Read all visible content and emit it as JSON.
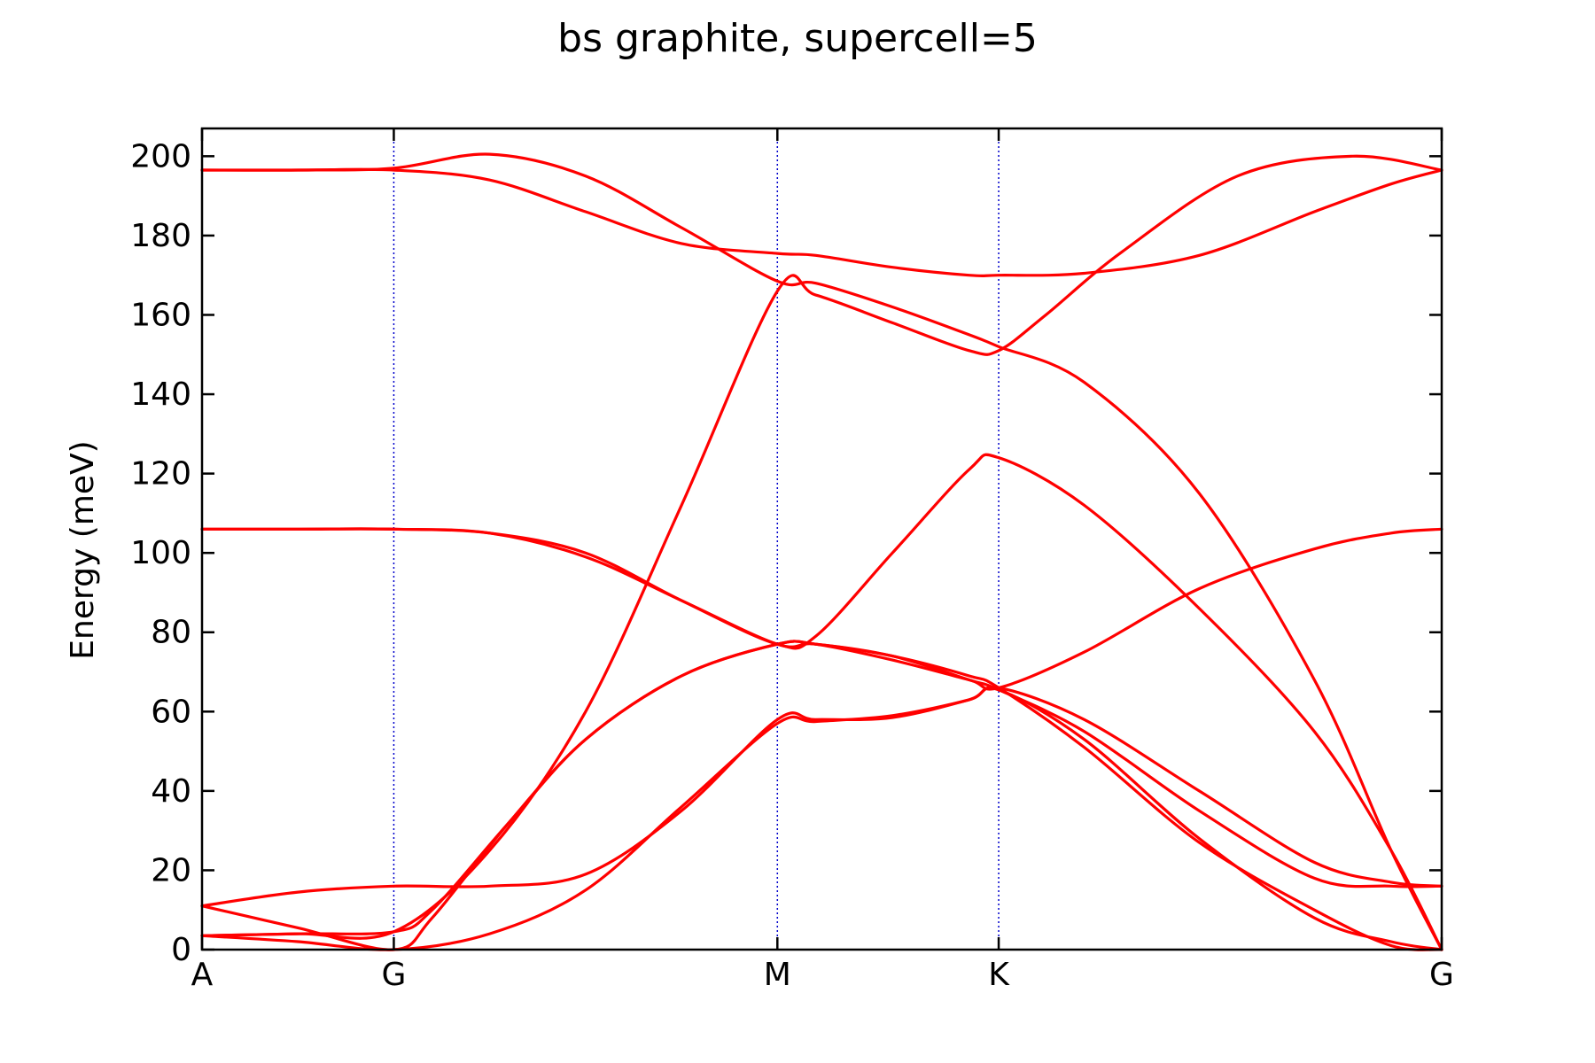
{
  "chart_data": {
    "type": "line",
    "title": "bs graphite, supercell=5",
    "ylabel": "Energy (meV)",
    "xlabel": "",
    "ylim": [
      0,
      207
    ],
    "yticks": [
      0,
      20,
      40,
      60,
      80,
      100,
      120,
      140,
      160,
      180,
      200
    ],
    "high_symmetry_points": [
      {
        "label": "A",
        "x": 0.0
      },
      {
        "label": "G",
        "x": 0.5
      },
      {
        "label": "M",
        "x": 1.5
      },
      {
        "label": "K",
        "x": 2.077
      },
      {
        "label": "G",
        "x": 3.232
      }
    ],
    "xlim": [
      0.0,
      3.232
    ],
    "line_color": "#ff0000",
    "vline_color": "#0000cc",
    "grid": false,
    "series": [
      {
        "x": [
          0.0,
          0.25,
          0.5,
          0.75,
          1.0,
          1.25,
          1.5,
          1.6,
          1.8,
          2.0,
          2.077,
          2.2,
          2.4,
          2.7,
          3.0,
          3.232
        ],
        "values": [
          3.5,
          4.0,
          4.5,
          25,
          60,
          112,
          166,
          165,
          158,
          151,
          151,
          160,
          176,
          195,
          200,
          196.5
        ]
      },
      {
        "x": [
          0.0,
          0.25,
          0.5,
          0.75,
          1.0,
          1.25,
          1.5,
          1.6,
          1.8,
          2.0,
          2.077,
          2.3,
          2.6,
          2.9,
          3.1,
          3.232
        ],
        "values": [
          196.5,
          196.5,
          196.5,
          194,
          186,
          178,
          175.5,
          175,
          172,
          170,
          170,
          170.5,
          175,
          186,
          193,
          196.5
        ]
      },
      {
        "x": [
          0.0,
          0.25,
          0.5,
          0.75,
          1.0,
          1.25,
          1.5,
          1.6,
          1.8,
          2.0,
          2.077,
          2.3,
          2.6,
          2.9,
          3.1,
          3.232
        ],
        "values": [
          196.5,
          196.5,
          197,
          200.5,
          195,
          182,
          168.5,
          168,
          162,
          155,
          152,
          143,
          115,
          68,
          25,
          0
        ]
      },
      {
        "x": [
          0.0,
          0.25,
          0.5,
          0.75,
          1.0,
          1.25,
          1.5,
          1.6,
          1.8,
          2.0,
          2.077,
          2.3,
          2.6,
          2.9,
          3.1,
          3.232
        ],
        "values": [
          106,
          106,
          106,
          105,
          100,
          88,
          77,
          79,
          100,
          121,
          124,
          112,
          86,
          55,
          25,
          0
        ]
      },
      {
        "x": [
          0.0,
          0.25,
          0.5,
          0.75,
          1.0,
          1.25,
          1.5,
          1.6,
          1.8,
          2.0,
          2.077,
          2.3,
          2.6,
          2.9,
          3.1,
          3.232
        ],
        "values": [
          106,
          106,
          106,
          105,
          99,
          88,
          77,
          77,
          73,
          68,
          66,
          75,
          91,
          101,
          105,
          106
        ]
      },
      {
        "x": [
          0.0,
          0.25,
          0.5,
          0.6,
          0.8,
          1.0,
          1.25,
          1.5,
          1.6,
          1.8,
          2.0,
          2.077,
          2.3,
          2.6,
          2.9,
          3.1,
          3.232
        ],
        "values": [
          11,
          5.5,
          0,
          8,
          32,
          53,
          69,
          77,
          77,
          74,
          69,
          66,
          51,
          27,
          10,
          1,
          0
        ]
      },
      {
        "x": [
          0.0,
          0.25,
          0.5,
          0.6,
          0.8,
          1.0,
          1.25,
          1.5,
          1.6,
          1.8,
          2.0,
          2.077,
          2.3,
          2.6,
          2.9,
          3.1,
          3.232
        ],
        "values": [
          3.5,
          4.0,
          4.5,
          10,
          32,
          53,
          69,
          77,
          77,
          74,
          68,
          65.5,
          55,
          35,
          18,
          16,
          16
        ]
      },
      {
        "x": [
          0.0,
          0.25,
          0.5,
          0.75,
          1.0,
          1.25,
          1.5,
          1.6,
          1.8,
          2.0,
          2.077,
          2.3,
          2.6,
          2.9,
          3.1,
          3.232
        ],
        "values": [
          11,
          14.5,
          16,
          16,
          19,
          35,
          58,
          58,
          58.5,
          63,
          65.5,
          53,
          28,
          8,
          2,
          0
        ]
      },
      {
        "x": [
          0.0,
          0.25,
          0.5,
          0.75,
          1.0,
          1.25,
          1.5,
          1.6,
          1.8,
          2.0,
          2.077,
          2.3,
          2.6,
          2.9,
          3.1,
          3.232
        ],
        "values": [
          3.5,
          2.0,
          0,
          4,
          15,
          36,
          57,
          57.5,
          59,
          63,
          66,
          58,
          40,
          22,
          17,
          16
        ]
      }
    ]
  }
}
